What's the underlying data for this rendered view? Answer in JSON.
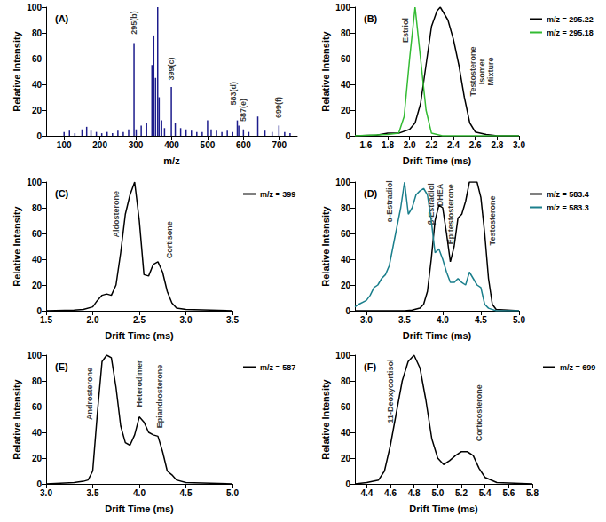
{
  "chart_data": [
    {
      "type": "bar",
      "title": "(A)",
      "xlabel": "m/z",
      "ylabel": "Relative Intensity",
      "color": "#1c1c8c",
      "x": [
        100,
        115,
        130,
        150,
        163,
        175,
        190,
        205,
        220,
        235,
        250,
        265,
        280,
        295,
        301,
        315,
        330,
        345,
        350,
        355,
        361,
        365,
        372,
        380,
        399,
        410,
        425,
        440,
        455,
        470,
        485,
        500,
        510,
        525,
        540,
        555,
        570,
        583,
        587,
        600,
        615,
        640,
        660,
        680,
        699,
        715,
        730
      ],
      "values": [
        3,
        4,
        2,
        5,
        7,
        4,
        3,
        2,
        3,
        2,
        4,
        3,
        5,
        72,
        5,
        8,
        10,
        55,
        78,
        45,
        100,
        30,
        12,
        6,
        38,
        10,
        6,
        5,
        4,
        3,
        3,
        12,
        5,
        4,
        3,
        4,
        3,
        12,
        8,
        5,
        3,
        15,
        4,
        3,
        8,
        3,
        2
      ],
      "xlim": [
        50,
        750
      ],
      "xticks": [
        100,
        200,
        300,
        400,
        500,
        600,
        700
      ],
      "ylim": [
        0,
        100
      ],
      "yticks": [
        0,
        20,
        40,
        60,
        80,
        100
      ],
      "grid": false,
      "annotations": [
        {
          "text": "295(b)",
          "x": 295,
          "y": 88
        },
        {
          "text": "399(c)",
          "x": 399,
          "y": 52
        },
        {
          "text": "583(d)",
          "x": 572,
          "y": 33
        },
        {
          "text": "587(e)",
          "x": 598,
          "y": 20
        },
        {
          "text": "699(f)",
          "x": 699,
          "y": 22
        }
      ]
    },
    {
      "type": "line",
      "title": "(B)",
      "xlabel": "Drift Time (ms)",
      "ylabel": "Relative Intensity",
      "legend": "right",
      "series": [
        {
          "name": "m/z = 295.22",
          "color": "#000000",
          "x": [
            1.5,
            1.7,
            1.8,
            1.9,
            2.0,
            2.05,
            2.1,
            2.15,
            2.2,
            2.25,
            2.28,
            2.35,
            2.4,
            2.45,
            2.5,
            2.55,
            2.6,
            2.7,
            2.8,
            3.0
          ],
          "values": [
            0,
            0.5,
            2,
            2,
            5,
            10,
            25,
            55,
            85,
            97,
            100,
            90,
            75,
            55,
            30,
            10,
            3,
            1,
            0,
            0
          ]
        },
        {
          "name": "m/z = 295.18",
          "color": "#33bb33",
          "x": [
            1.5,
            1.8,
            1.9,
            1.95,
            2.0,
            2.05,
            2.1,
            2.15,
            2.2,
            2.3,
            3.0
          ],
          "values": [
            0,
            1,
            2,
            15,
            60,
            100,
            60,
            20,
            2,
            0,
            0
          ]
        }
      ],
      "xlim": [
        1.5,
        3.0
      ],
      "xticks": [
        1.6,
        1.8,
        {
          "value": 2,
          "label": "2.0"
        },
        2.2,
        2.4,
        2.6,
        2.8,
        {
          "value": 3,
          "label": "3.0"
        }
      ],
      "ylim": [
        0,
        100
      ],
      "yticks": [
        0,
        20,
        40,
        60,
        80,
        100
      ],
      "grid": false,
      "annotations": [
        {
          "text": "Estriol",
          "x": 1.96,
          "y": 82
        },
        {
          "text": "Testosterone Isomer Mixture",
          "x": 2.66,
          "y": 50
        }
      ]
    },
    {
      "type": "line",
      "title": "(C)",
      "xlabel": "Drift Time (ms)",
      "ylabel": "Relative Intensity",
      "legend": "right",
      "series": [
        {
          "name": "m/z = 399",
          "color": "#000000",
          "x": [
            1.5,
            1.8,
            1.9,
            2.0,
            2.05,
            2.1,
            2.15,
            2.2,
            2.25,
            2.3,
            2.35,
            2.4,
            2.45,
            2.5,
            2.55,
            2.6,
            2.65,
            2.7,
            2.75,
            2.8,
            2.85,
            2.9,
            3.0,
            3.5
          ],
          "values": [
            0,
            0.5,
            1,
            3,
            8,
            12,
            13,
            12,
            20,
            45,
            75,
            90,
            100,
            70,
            28,
            27,
            36,
            38,
            30,
            15,
            6,
            2,
            1,
            0
          ]
        }
      ],
      "xlim": [
        1.5,
        3.5
      ],
      "xticks": [
        1.5,
        {
          "value": 2,
          "label": "2.0"
        },
        2.5,
        {
          "value": 3,
          "label": "3.0"
        },
        3.5
      ],
      "ylim": [
        0,
        100
      ],
      "yticks": [
        0,
        20,
        40,
        60,
        80,
        100
      ],
      "grid": false,
      "annotations": [
        {
          "text": "Aldosterone",
          "x": 2.25,
          "y": 75
        },
        {
          "text": "Cortisone",
          "x": 2.82,
          "y": 55
        }
      ]
    },
    {
      "type": "line",
      "title": "(D)",
      "xlabel": "Drift Time (ms)",
      "ylabel": "Relative Intensity",
      "legend": "right",
      "series": [
        {
          "name": "m/z = 583.4",
          "color": "#000000",
          "x": [
            2.85,
            3.5,
            3.6,
            3.7,
            3.75,
            3.8,
            3.85,
            3.9,
            3.95,
            4.0,
            4.05,
            4.1,
            4.15,
            4.2,
            4.25,
            4.3,
            4.35,
            4.45,
            4.5,
            4.55,
            4.6,
            4.65,
            4.7,
            5.0
          ],
          "values": [
            0,
            0,
            0.5,
            2,
            5,
            15,
            40,
            70,
            82,
            80,
            60,
            38,
            50,
            72,
            75,
            85,
            100,
            100,
            88,
            60,
            25,
            5,
            1,
            0
          ]
        },
        {
          "name": "m/z = 583.3",
          "color": "#1b7f8c",
          "x": [
            2.85,
            2.9,
            3.0,
            3.05,
            3.1,
            3.15,
            3.2,
            3.25,
            3.3,
            3.35,
            3.4,
            3.45,
            3.5,
            3.55,
            3.6,
            3.65,
            3.7,
            3.75,
            3.8,
            3.85,
            3.9,
            3.95,
            4.0,
            4.05,
            4.1,
            4.15,
            4.2,
            4.25,
            4.3,
            4.35,
            4.4,
            4.45,
            4.5,
            4.55,
            4.6,
            4.7,
            5.0
          ],
          "values": [
            3,
            5,
            8,
            12,
            18,
            20,
            25,
            28,
            35,
            50,
            65,
            80,
            100,
            75,
            80,
            90,
            93,
            95,
            90,
            70,
            45,
            48,
            40,
            30,
            22,
            22,
            25,
            22,
            20,
            30,
            25,
            20,
            18,
            5,
            2,
            0,
            0
          ]
        }
      ],
      "xlim": [
        2.85,
        5.0
      ],
      "xticks": [
        {
          "value": 3,
          "label": "3.0"
        },
        3.5,
        {
          "value": 4,
          "label": "4.0"
        },
        4.5,
        {
          "value": 5,
          "label": "5.0"
        }
      ],
      "ylim": [
        0,
        100
      ],
      "yticks": [
        0,
        20,
        40,
        60,
        80,
        100
      ],
      "grid": false,
      "annotations": [
        {
          "text": "α-Estradiol",
          "x": 3.3,
          "y": 85
        },
        {
          "text": "β-Estradiol",
          "x": 3.85,
          "y": 83
        },
        {
          "text": "DHEA",
          "x": 3.96,
          "y": 90
        },
        {
          "text": "Epitestosterone",
          "x": 4.1,
          "y": 75
        },
        {
          "text": "Testosterone",
          "x": 4.65,
          "y": 70
        }
      ]
    },
    {
      "type": "line",
      "title": "(E)",
      "xlabel": "Drift Time (ms)",
      "ylabel": "Relative Intensity",
      "legend": "right",
      "series": [
        {
          "name": "m/z = 587",
          "color": "#000000",
          "x": [
            3.0,
            3.3,
            3.4,
            3.45,
            3.5,
            3.55,
            3.6,
            3.65,
            3.7,
            3.75,
            3.8,
            3.85,
            3.9,
            3.95,
            4.0,
            4.05,
            4.1,
            4.15,
            4.2,
            4.25,
            4.3,
            4.35,
            4.4,
            4.5,
            5.0
          ],
          "values": [
            0,
            1,
            2,
            3,
            10,
            55,
            95,
            100,
            98,
            75,
            45,
            32,
            30,
            38,
            52,
            48,
            40,
            38,
            37,
            25,
            10,
            7,
            3,
            1,
            0
          ]
        }
      ],
      "xlim": [
        3.0,
        5.0
      ],
      "xticks": [
        {
          "value": 3,
          "label": "3.0"
        },
        3.5,
        {
          "value": 4,
          "label": "4.0"
        },
        4.5,
        {
          "value": 5,
          "label": "5.0"
        }
      ],
      "ylim": [
        0,
        100
      ],
      "yticks": [
        0,
        20,
        40,
        60,
        80,
        100
      ],
      "grid": false,
      "annotations": [
        {
          "text": "Androsterone",
          "x": 3.47,
          "y": 70
        },
        {
          "text": "Heterodimer",
          "x": 4.0,
          "y": 78
        },
        {
          "text": "Epiandrosterone",
          "x": 4.22,
          "y": 68
        }
      ]
    },
    {
      "type": "line",
      "title": "(F)",
      "xlabel": "Drift Time (ms)",
      "ylabel": "Relative Intensity",
      "legend": "right",
      "series": [
        {
          "name": "m/z = 699",
          "color": "#000000",
          "x": [
            4.3,
            4.4,
            4.5,
            4.55,
            4.6,
            4.65,
            4.7,
            4.75,
            4.8,
            4.85,
            4.9,
            4.95,
            5.0,
            5.05,
            5.1,
            5.15,
            5.2,
            5.25,
            5.3,
            5.35,
            5.4,
            5.5,
            5.8
          ],
          "values": [
            0,
            1,
            3,
            10,
            30,
            55,
            80,
            95,
            100,
            90,
            65,
            35,
            20,
            15,
            18,
            22,
            25,
            25,
            22,
            12,
            5,
            1,
            0
          ]
        }
      ],
      "xlim": [
        4.3,
        5.8
      ],
      "xticks": [
        4.4,
        4.6,
        4.8,
        {
          "value": 5,
          "label": "5.0"
        },
        5.2,
        5.4,
        5.6,
        5.8
      ],
      "ylim": [
        0,
        100
      ],
      "yticks": [
        0,
        20,
        40,
        60,
        80,
        100
      ],
      "grid": false,
      "annotations": [
        {
          "text": "11-Deoxycortisol",
          "x": 4.6,
          "y": 72
        },
        {
          "text": "Corticosterone",
          "x": 5.35,
          "y": 55
        }
      ]
    }
  ]
}
